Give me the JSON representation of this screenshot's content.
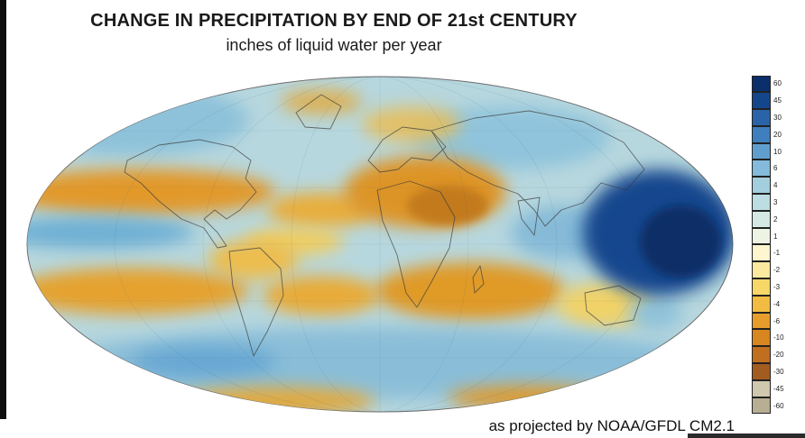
{
  "page": {
    "title": "CHANGE IN PRECIPITATION BY END OF 21st CENTURY",
    "subtitle": "inches of liquid water per year",
    "caption": "as projected by NOAA/GFDL CM2.1"
  },
  "map": {
    "projection": "oval-global",
    "ocean_base_color": "#b7d7de",
    "wet_accent_color": "#0a2f6b",
    "dry_accent_color": "#c27a1c"
  },
  "colorbar": {
    "units": "inches of liquid water per year",
    "entries": [
      {
        "label": "60",
        "color": "#0a2f6b"
      },
      {
        "label": "45",
        "color": "#14468c"
      },
      {
        "label": "30",
        "color": "#2a63a8"
      },
      {
        "label": "20",
        "color": "#3f7fbe"
      },
      {
        "label": "10",
        "color": "#609fcd"
      },
      {
        "label": "6",
        "color": "#84badb"
      },
      {
        "label": "4",
        "color": "#a3cede"
      },
      {
        "label": "3",
        "color": "#bcdde2"
      },
      {
        "label": "2",
        "color": "#d4e9e4"
      },
      {
        "label": "1",
        "color": "#edf4e3"
      },
      {
        "label": "-1",
        "color": "#fdf6cf"
      },
      {
        "label": "-2",
        "color": "#fae99e"
      },
      {
        "label": "-3",
        "color": "#f7d767"
      },
      {
        "label": "-4",
        "color": "#f2bc42"
      },
      {
        "label": "-6",
        "color": "#e79d2b"
      },
      {
        "label": "-10",
        "color": "#d88620"
      },
      {
        "label": "-20",
        "color": "#c06f1e"
      },
      {
        "label": "-30",
        "color": "#a35c20"
      },
      {
        "label": "-45",
        "color": "#cfc7ae"
      },
      {
        "label": "-60",
        "color": "#b7ae93"
      }
    ]
  }
}
